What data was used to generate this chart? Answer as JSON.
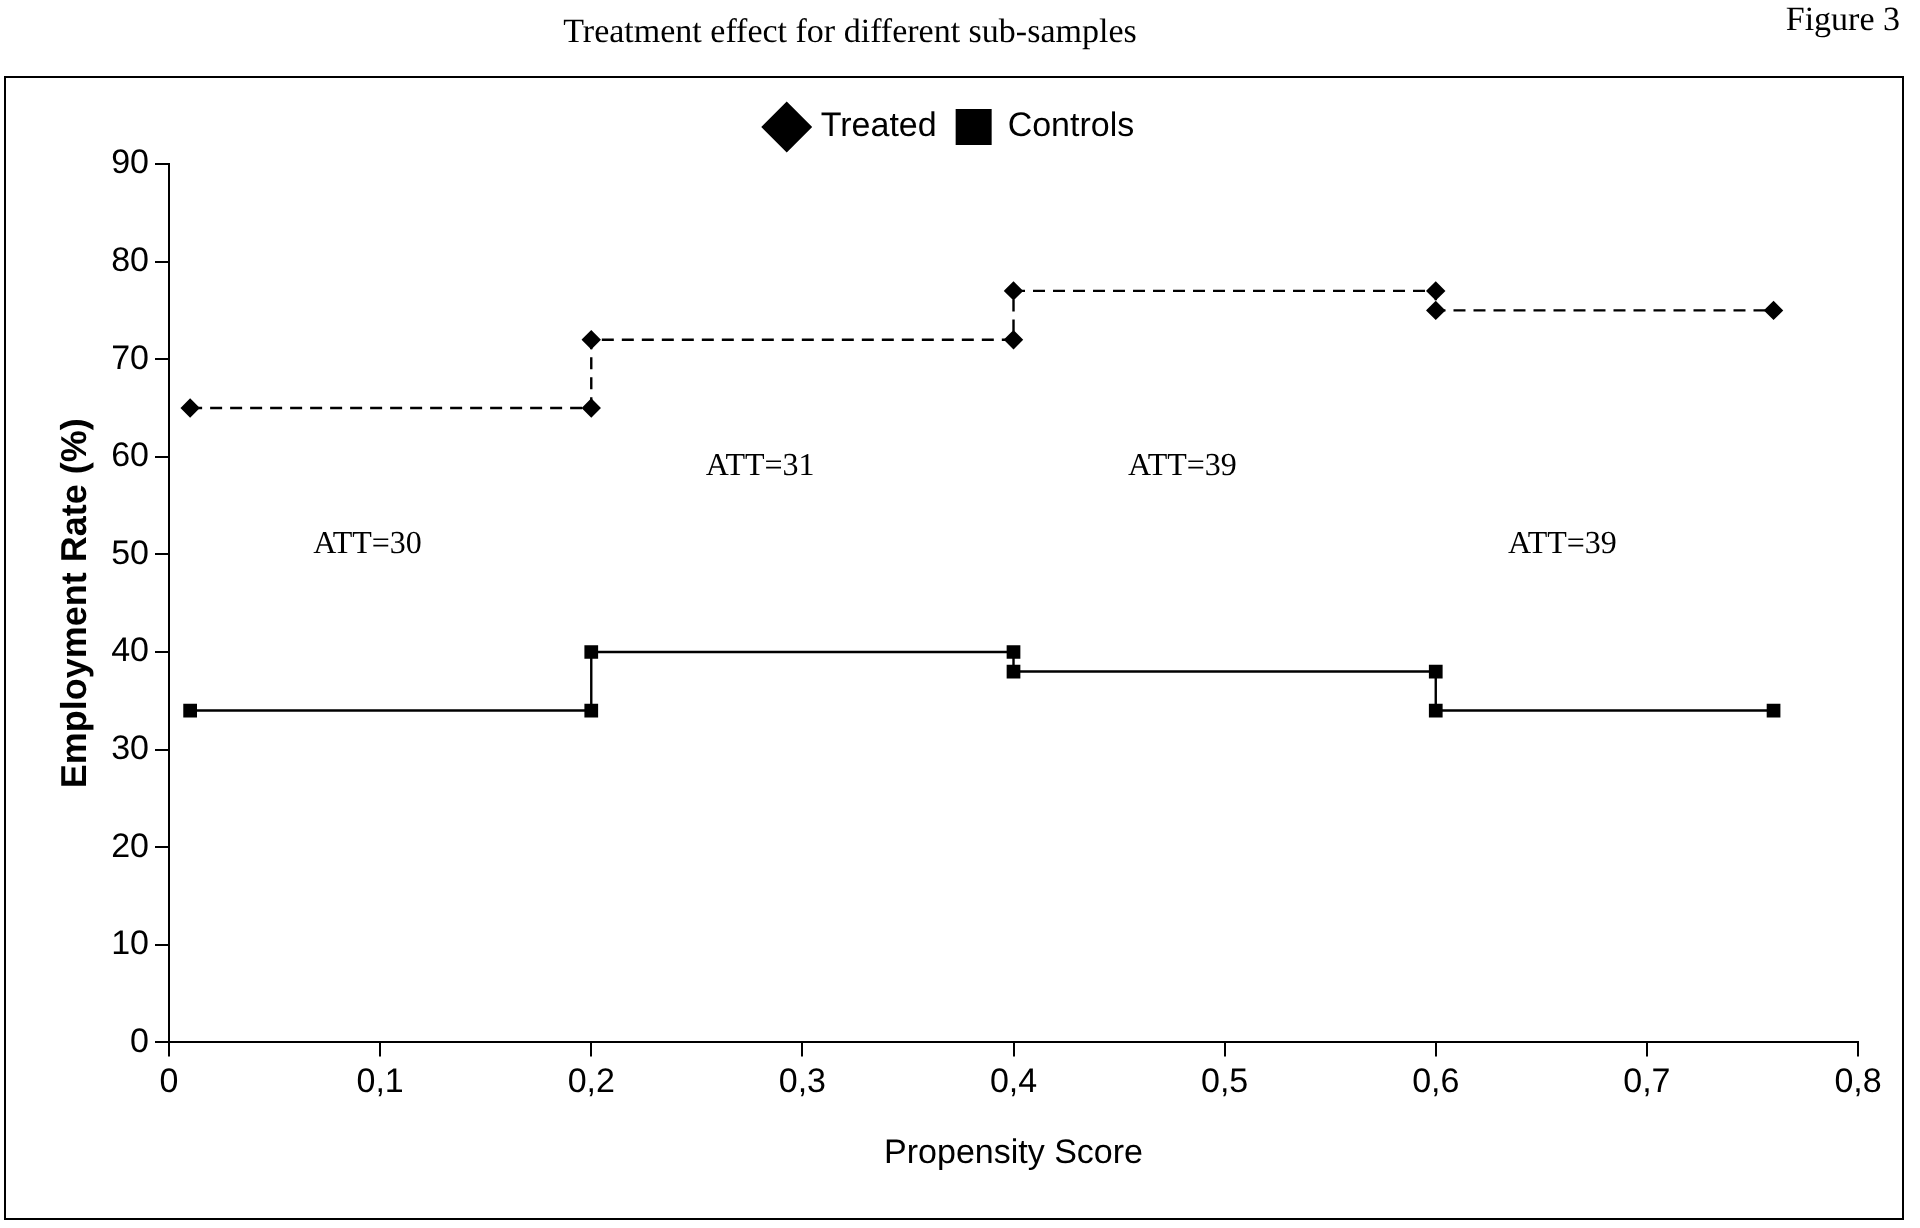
{
  "chart_data": {
    "type": "line",
    "title": "Treatment effect for different sub-samples",
    "subtitle": "Figure 3",
    "xlabel": "Propensity Score",
    "ylabel": "Employment Rate (%)",
    "series": [
      {
        "name": "Treated",
        "color": "#000000",
        "marker": "diamond",
        "line_style": "dashed",
        "x": [
          0.01,
          0.2,
          0.2,
          0.4,
          0.4,
          0.6,
          0.6,
          0.76
        ],
        "values": [
          65,
          65,
          72,
          72,
          77,
          77,
          75,
          75
        ]
      },
      {
        "name": "Controls",
        "color": "#000000",
        "marker": "square",
        "line_style": "solid",
        "x": [
          0.01,
          0.2,
          0.2,
          0.4,
          0.4,
          0.6,
          0.6,
          0.76
        ],
        "values": [
          34,
          34,
          40,
          40,
          38,
          38,
          34,
          34
        ]
      }
    ],
    "xlim": [
      0,
      0.8
    ],
    "xticks": [
      0,
      {
        "value": 0.1,
        "label": "0,1"
      },
      {
        "value": 0.2,
        "label": "0,2"
      },
      {
        "value": 0.3,
        "label": "0,3"
      },
      {
        "value": 0.4,
        "label": "0,4"
      },
      {
        "value": 0.5,
        "label": "0,5"
      },
      {
        "value": 0.6,
        "label": "0,6"
      },
      {
        "value": 0.7,
        "label": "0,7"
      },
      {
        "value": 0.8,
        "label": "0,8"
      }
    ],
    "ylim": [
      0,
      90
    ],
    "yticks": [
      0,
      10,
      20,
      30,
      40,
      50,
      60,
      70,
      80,
      90
    ],
    "grid": false,
    "legend": "top",
    "annotations": [
      "ATT=30",
      "ATT=31",
      "ATT=39",
      "ATT=39"
    ]
  }
}
